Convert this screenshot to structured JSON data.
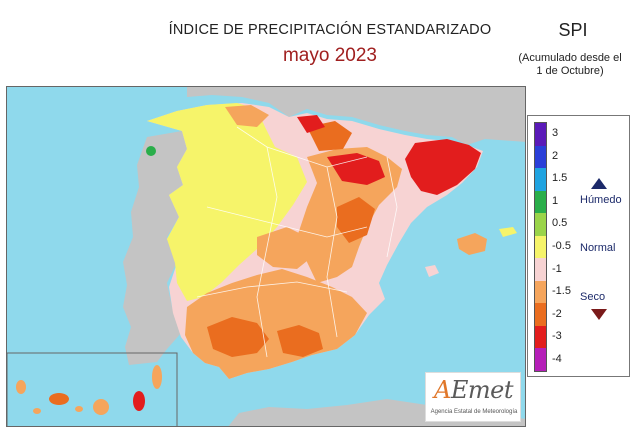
{
  "header": {
    "title": "ÍNDICE DE PRECIPITACIÓN ESTANDARIZADO",
    "subtitle": "mayo  2023",
    "index_label": "SPI",
    "accumulation_note_line1": "(Acumulado desde el",
    "accumulation_note_line2": "1 de Octubre)"
  },
  "legend": {
    "classes": [
      {
        "label": "3",
        "color": "#5a1ab8"
      },
      {
        "label": "2",
        "color": "#2a3fd8"
      },
      {
        "label": "1.5",
        "color": "#1fa3e0"
      },
      {
        "label": "1",
        "color": "#2aae4a"
      },
      {
        "label": "0.5",
        "color": "#9ad44a"
      },
      {
        "label": "-0.5",
        "color": "#f6f46a"
      },
      {
        "label": "-1",
        "color": "#f7d3d3"
      },
      {
        "label": "-1.5",
        "color": "#f5a55c"
      },
      {
        "label": "-2",
        "color": "#ea6d1f"
      },
      {
        "label": "-3",
        "color": "#e21d1d"
      },
      {
        "label": "-4",
        "color": "#b51fb8"
      }
    ],
    "categories": {
      "wet": "Húmedo",
      "normal": "Normal",
      "dry": "Seco"
    },
    "wet_icon": "triangle-up-icon",
    "dry_icon": "triangle-down-icon"
  },
  "colors": {
    "sea": "#8fd9ec",
    "foreign_land": "#c4c4c4",
    "accent_title": "#a02020",
    "category_text": "#1c2a6a"
  },
  "logo": {
    "mark_accent": "A",
    "mark_rest": "Emet",
    "caption": "Agencia Estatal de Meteorología"
  }
}
